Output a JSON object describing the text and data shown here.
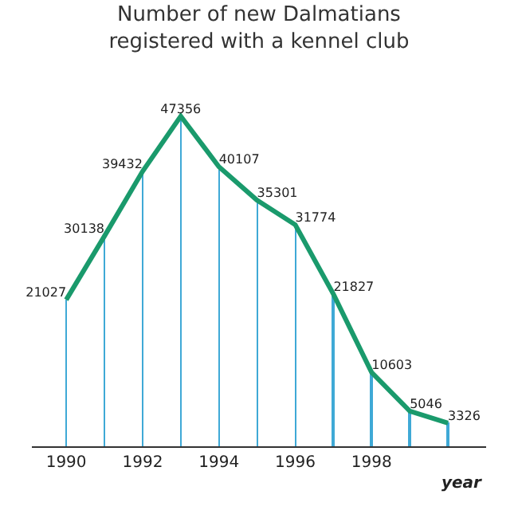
{
  "chart_data": {
    "type": "line",
    "title": "Number of new Dalmatians\nregistered with a kennel club",
    "xlabel": "year",
    "x": [
      1990,
      1991,
      1992,
      1993,
      1994,
      1995,
      1996,
      1997,
      1998,
      1999,
      2000
    ],
    "xlim": [
      1989.1,
      2001.0
    ],
    "xticks": [
      1990,
      1992,
      1994,
      1996,
      1998
    ],
    "series": [
      {
        "type": "bar",
        "color": "#3fa9d6",
        "values": [
          21027,
          30138,
          39432,
          47356,
          40107,
          35301,
          31774,
          21827,
          10603,
          5046,
          3326
        ]
      },
      {
        "color": "#1a9a6c",
        "values": [
          21027,
          30138,
          39432,
          47356,
          40107,
          35301,
          31774,
          21827,
          10603,
          5046,
          3326
        ],
        "value_labels": [
          "21027",
          "30138",
          "39432",
          "47356",
          "40107",
          "35301",
          "31774",
          "21827",
          "10603",
          "5046",
          "3326"
        ]
      }
    ],
    "tick_labels": "x"
  }
}
